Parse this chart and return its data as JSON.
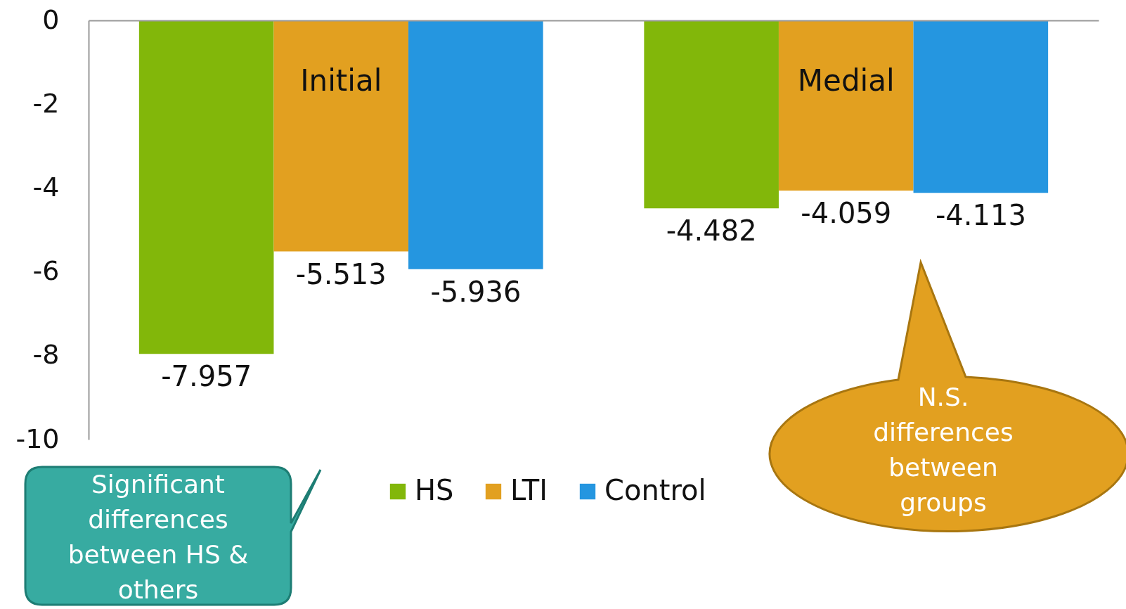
{
  "chart_data": {
    "type": "bar",
    "categories": [
      "Initial",
      "Medial"
    ],
    "series": [
      {
        "name": "HS",
        "color": "#82b70a",
        "values": [
          -7.957,
          -4.482
        ]
      },
      {
        "name": "LTI",
        "color": "#e2a020",
        "values": [
          -5.513,
          -4.059
        ]
      },
      {
        "name": "Control",
        "color": "#2596e0",
        "values": [
          -5.936,
          -4.113
        ]
      }
    ],
    "ylim": [
      -10,
      0
    ],
    "yticks": [
      -10,
      -8,
      -6,
      -4,
      -2,
      0
    ],
    "grid": false,
    "legend": "bottom",
    "data_labels": true,
    "annotations": [
      "Significant differences between HS & others",
      "N.S. differences between groups"
    ]
  }
}
